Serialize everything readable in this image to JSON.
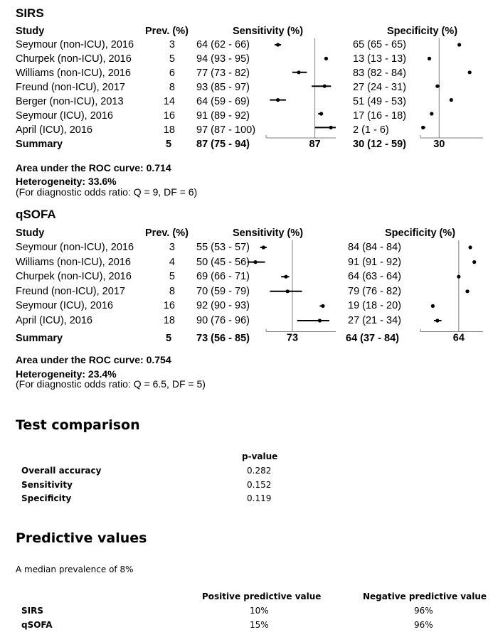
{
  "chart_data": [
    {
      "type": "forest",
      "title": "SIRS",
      "headers": {
        "study": "Study",
        "prev": "Prev. (%)",
        "sensitivity": "Sensitivity (%)",
        "specificity": "Specificity (%)"
      },
      "studies": [
        {
          "study": "Seymour (non-ICU), 2016",
          "prev": "3",
          "sens_text": "64 (62 - 66)",
          "spec_text": "65 (65 - 65)",
          "sens": 64,
          "sens_lo": 62,
          "sens_hi": 66,
          "spec": 65,
          "spec_lo": 65,
          "spec_hi": 65
        },
        {
          "study": "Churpek (non-ICU), 2016",
          "prev": "5",
          "sens_text": "94 (93 - 95)",
          "spec_text": "13 (13 - 13)",
          "sens": 94,
          "sens_lo": 93,
          "sens_hi": 95,
          "spec": 13,
          "spec_lo": 13,
          "spec_hi": 13
        },
        {
          "study": "Williams (non-ICU), 2016",
          "prev": "6",
          "sens_text": "77 (73 - 82)",
          "spec_text": "83 (82 - 84)",
          "sens": 77,
          "sens_lo": 73,
          "sens_hi": 82,
          "spec": 83,
          "spec_lo": 82,
          "spec_hi": 84
        },
        {
          "study": "Freund (non-ICU), 2017",
          "prev": "8",
          "sens_text": "93 (85 - 97)",
          "spec_text": "27 (24 - 31)",
          "sens": 93,
          "sens_lo": 85,
          "sens_hi": 97,
          "spec": 27,
          "spec_lo": 24,
          "spec_hi": 31
        },
        {
          "study": "Berger (non-ICU), 2013",
          "prev": "14",
          "sens_text": "64 (59 - 69)",
          "spec_text": "51 (49 - 53)",
          "sens": 64,
          "sens_lo": 59,
          "sens_hi": 69,
          "spec": 51,
          "spec_lo": 49,
          "spec_hi": 53
        },
        {
          "study": "Seymour (ICU), 2016",
          "prev": "16",
          "sens_text": "91 (89 - 92)",
          "spec_text": "17 (16 - 18)",
          "sens": 91,
          "sens_lo": 89,
          "sens_hi": 92,
          "spec": 17,
          "spec_lo": 16,
          "spec_hi": 18
        },
        {
          "study": "April (ICU), 2016",
          "prev": "18",
          "sens_text": "97 (87 - 100)",
          "spec_text": "2 (1 - 6)",
          "sens": 97,
          "sens_lo": 87,
          "sens_hi": 100,
          "spec": 2,
          "spec_lo": 1,
          "spec_hi": 6
        }
      ],
      "summary": {
        "label": "Summary",
        "prev": "5",
        "sens_text": "87 (75 - 94)",
        "spec_text": "30 (12 - 59)",
        "sens": 87,
        "spec": 30,
        "sens_axis_label": "87",
        "spec_axis_label": "30"
      },
      "auc_text": "Area under the ROC curve: 0.714",
      "heterogeneity_text": "Heterogeneity: 33.6%",
      "odds_text": "(For diagnostic odds ratio: Q = 9, DF = 6)"
    },
    {
      "type": "forest",
      "title": "qSOFA",
      "headers": {
        "study": "Study",
        "prev": "Prev. (%)",
        "sensitivity": "Sensitivity (%)",
        "specificity": "Specificity (%)"
      },
      "studies": [
        {
          "study": "Seymour (non-ICU), 2016",
          "prev": "3",
          "sens_text": "55 (53 - 57)",
          "spec_text": "84 (84 - 84)",
          "sens": 55,
          "sens_lo": 53,
          "sens_hi": 57,
          "spec": 84,
          "spec_lo": 84,
          "spec_hi": 84
        },
        {
          "study": "Williams (non-ICU), 2016",
          "prev": "4",
          "sens_text": "50 (45 - 56)",
          "spec_text": "91 (91 - 92)",
          "sens": 50,
          "sens_lo": 45,
          "sens_hi": 56,
          "spec": 91,
          "spec_lo": 91,
          "spec_hi": 92
        },
        {
          "study": "Churpek (non-ICU), 2016",
          "prev": "5",
          "sens_text": "69 (66 - 71)",
          "spec_text": "64 (63 - 64)",
          "sens": 69,
          "sens_lo": 66,
          "sens_hi": 71,
          "spec": 64,
          "spec_lo": 63,
          "spec_hi": 64
        },
        {
          "study": "Freund (non-ICU), 2017",
          "prev": "8",
          "sens_text": "70 (59 - 79)",
          "spec_text": "79 (76 - 82)",
          "sens": 70,
          "sens_lo": 59,
          "sens_hi": 79,
          "spec": 79,
          "spec_lo": 76,
          "spec_hi": 82
        },
        {
          "study": "Seymour (ICU), 2016",
          "prev": "16",
          "sens_text": "92 (90 - 93)",
          "spec_text": "19 (18 - 20)",
          "sens": 92,
          "sens_lo": 90,
          "sens_hi": 93,
          "spec": 19,
          "spec_lo": 18,
          "spec_hi": 20
        },
        {
          "study": "April (ICU), 2016",
          "prev": "18",
          "sens_text": "90 (76 - 96)",
          "spec_text": "27 (21 - 34)",
          "sens": 90,
          "sens_lo": 76,
          "sens_hi": 96,
          "spec": 27,
          "spec_lo": 21,
          "spec_hi": 34
        }
      ],
      "summary": {
        "label": "Summary",
        "prev": "5",
        "sens_text": "73 (56 - 85)",
        "spec_text": "64 (37 - 84)",
        "sens": 73,
        "spec": 64,
        "sens_axis_label": "73",
        "spec_axis_label": "64"
      },
      "auc_text": "Area under the ROC curve: 0.754",
      "heterogeneity_text": "Heterogeneity: 23.4%",
      "odds_text": "(For diagnostic odds ratio: Q = 6.5, DF = 5)"
    }
  ],
  "test_comparison": {
    "title": "Test comparison",
    "col_header": "p-value",
    "rows": [
      {
        "label": "Overall accuracy",
        "value": "0.282"
      },
      {
        "label": "Sensitivity",
        "value": "0.152"
      },
      {
        "label": "Specificity",
        "value": "0.119"
      }
    ]
  },
  "predictive_values": {
    "title": "Predictive values",
    "subtitle": "A median prevalence of 8%",
    "headers": {
      "ppv": "Positive predictive value",
      "npv": "Negative predictive value"
    },
    "rows": [
      {
        "label": "SIRS",
        "ppv": "10%",
        "npv": "96%"
      },
      {
        "label": "qSOFA",
        "ppv": "15%",
        "npv": "96%"
      }
    ]
  }
}
